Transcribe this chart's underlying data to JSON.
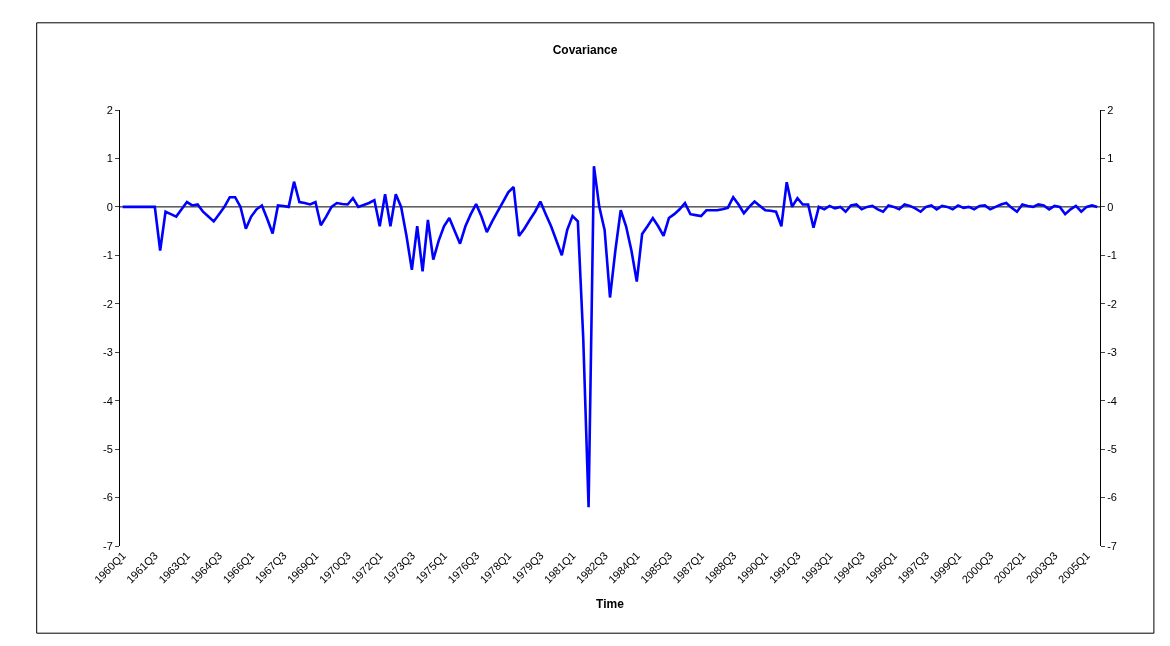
{
  "chart_data": {
    "type": "line",
    "title": "Covariance",
    "xlabel": "Time",
    "categories": [
      "1960Q1",
      null,
      null,
      null,
      null,
      null,
      "1961Q3",
      null,
      null,
      null,
      null,
      null,
      "1963Q1",
      null,
      null,
      null,
      null,
      null,
      "1964Q3",
      null,
      null,
      null,
      null,
      null,
      "1966Q1",
      null,
      null,
      null,
      null,
      null,
      "1967Q3",
      null,
      null,
      null,
      null,
      null,
      "1969Q1",
      null,
      null,
      null,
      null,
      null,
      "1970Q3",
      null,
      null,
      null,
      null,
      null,
      "1972Q1",
      null,
      null,
      null,
      null,
      null,
      "1973Q3",
      null,
      null,
      null,
      null,
      null,
      "1975Q1",
      null,
      null,
      null,
      null,
      null,
      "1976Q3",
      null,
      null,
      null,
      null,
      null,
      "1978Q1",
      null,
      null,
      null,
      null,
      null,
      "1979Q3",
      null,
      null,
      null,
      null,
      null,
      "1981Q1",
      null,
      null,
      null,
      null,
      null,
      "1982Q3",
      null,
      null,
      null,
      null,
      null,
      "1984Q1",
      null,
      null,
      null,
      null,
      null,
      "1985Q3",
      null,
      null,
      null,
      null,
      null,
      "1987Q1",
      null,
      null,
      null,
      null,
      null,
      "1988Q3",
      null,
      null,
      null,
      null,
      null,
      "1990Q1",
      null,
      null,
      null,
      null,
      null,
      "1991Q3",
      null,
      null,
      null,
      null,
      null,
      "1993Q1",
      null,
      null,
      null,
      null,
      null,
      "1994Q3",
      null,
      null,
      null,
      null,
      null,
      "1996Q1",
      null,
      null,
      null,
      null,
      null,
      "1997Q3",
      null,
      null,
      null,
      null,
      null,
      "1999Q1",
      null,
      null,
      null,
      null,
      null,
      "2000Q3",
      null,
      null,
      null,
      null,
      null,
      "2002Q1",
      null,
      null,
      null,
      null,
      null,
      "2003Q3",
      null,
      null,
      null,
      null,
      null,
      "2005Q1",
      null,
      null
    ],
    "series": [
      {
        "color": "#0000ff",
        "values": [
          0,
          0,
          0,
          0,
          0,
          0,
          0,
          -0.9,
          -0.1,
          -0.15,
          -0.2,
          -0.05,
          0.1,
          0.03,
          0.05,
          -0.1,
          -0.2,
          -0.3,
          -0.15,
          0,
          0.2,
          0.2,
          0,
          -0.45,
          -0.2,
          -0.05,
          0.03,
          -0.25,
          -0.55,
          0.03,
          0.02,
          0,
          0.52,
          0.1,
          0.08,
          0.05,
          0.1,
          -0.38,
          -0.2,
          0,
          0.08,
          0.06,
          0.05,
          0.18,
          0,
          0.04,
          0.08,
          0.14,
          -0.4,
          0.26,
          -0.4,
          0.26,
          0,
          -0.6,
          -1.3,
          -0.4,
          -1.33,
          -0.27,
          -1.09,
          -0.7,
          -0.4,
          -0.23,
          -0.5,
          -0.76,
          -0.4,
          -0.15,
          0.06,
          -0.2,
          -0.52,
          -0.3,
          -0.1,
          0.1,
          0.3,
          0.41,
          -0.6,
          -0.45,
          -0.27,
          -0.1,
          0.11,
          -0.15,
          -0.4,
          -0.7,
          -1.0,
          -0.48,
          -0.19,
          -0.3,
          -2.7,
          -6.2,
          0.84,
          0,
          -0.48,
          -1.87,
          -0.9,
          -0.07,
          -0.4,
          -0.9,
          -1.54,
          -0.56,
          -0.4,
          -0.23,
          -0.4,
          -0.6,
          -0.23,
          -0.15,
          -0.05,
          0.08,
          -0.15,
          -0.17,
          -0.19,
          -0.07,
          -0.07,
          -0.07,
          -0.05,
          -0.02,
          0.2,
          0.05,
          -0.13,
          0,
          0.11,
          0.02,
          -0.07,
          -0.08,
          -0.1,
          -0.4,
          0.51,
          0,
          0.18,
          0.05,
          0.05,
          -0.43,
          0,
          -0.05,
          0.02,
          -0.03,
          0,
          -0.1,
          0.03,
          0.05,
          -0.05,
          0,
          0.02,
          -0.05,
          -0.1,
          0.03,
          0,
          -0.05,
          0.05,
          0.02,
          -0.03,
          -0.1,
          0,
          0.03,
          -0.05,
          0.02,
          0,
          -0.05,
          0.03,
          -0.02,
          0,
          -0.05,
          0.02,
          0.03,
          -0.05,
          0,
          0.05,
          0.08,
          -0.02,
          -0.1,
          0.05,
          0.02,
          0,
          0.05,
          0.03,
          -0.05,
          0.02,
          0,
          -0.15,
          -0.05,
          0.02,
          -0.1,
          0,
          0.03,
          0
        ]
      }
    ],
    "ylim": [
      -7,
      2
    ],
    "yticks": [
      -7,
      -6,
      -5,
      -4,
      -3,
      -2,
      -1,
      0,
      1,
      2
    ],
    "y2lim": [
      -7,
      2
    ],
    "y2ticks": [
      -7,
      -6,
      -5,
      -4,
      -3,
      -2,
      -1,
      0,
      1,
      2
    ],
    "ref_lines": [
      {
        "axis": "y",
        "value": 0,
        "color": "#000000"
      }
    ],
    "grid": false,
    "marker": "none",
    "line_style": "solid"
  }
}
